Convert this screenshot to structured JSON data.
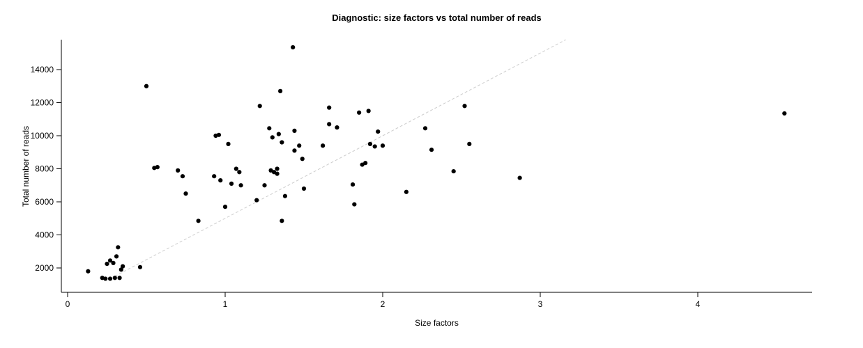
{
  "chart_data": {
    "type": "scatter",
    "title": "Diagnostic: size factors vs total number of reads",
    "xlabel": "Size factors",
    "ylabel": "Total number of reads",
    "xlim": [
      0,
      4.7
    ],
    "ylim": [
      500,
      15800
    ],
    "x_ticks": [
      0,
      1,
      2,
      3,
      4
    ],
    "y_ticks": [
      2000,
      4000,
      6000,
      8000,
      10000,
      12000,
      14000
    ],
    "grid": false,
    "legend": "none",
    "point_color": "#000000",
    "reference_line": {
      "style": "dashed",
      "color": "#cccccc",
      "slope": 5000,
      "intercept": 0
    },
    "points": [
      [
        0.13,
        1800
      ],
      [
        0.22,
        1400
      ],
      [
        0.24,
        1350
      ],
      [
        0.25,
        2250
      ],
      [
        0.27,
        2450
      ],
      [
        0.27,
        1350
      ],
      [
        0.29,
        2300
      ],
      [
        0.3,
        1400
      ],
      [
        0.31,
        2700
      ],
      [
        0.32,
        3250
      ],
      [
        0.33,
        1400
      ],
      [
        0.34,
        1900
      ],
      [
        0.35,
        2100
      ],
      [
        0.46,
        2050
      ],
      [
        0.5,
        13000
      ],
      [
        0.55,
        8050
      ],
      [
        0.57,
        8100
      ],
      [
        0.7,
        7900
      ],
      [
        0.73,
        7550
      ],
      [
        0.75,
        6500
      ],
      [
        0.83,
        4850
      ],
      [
        0.93,
        7550
      ],
      [
        0.94,
        10000
      ],
      [
        0.96,
        10050
      ],
      [
        0.97,
        7300
      ],
      [
        1.0,
        5700
      ],
      [
        1.02,
        9500
      ],
      [
        1.04,
        7100
      ],
      [
        1.07,
        8000
      ],
      [
        1.09,
        7800
      ],
      [
        1.1,
        7000
      ],
      [
        1.2,
        6100
      ],
      [
        1.22,
        11800
      ],
      [
        1.25,
        7000
      ],
      [
        1.28,
        10450
      ],
      [
        1.29,
        7900
      ],
      [
        1.3,
        9900
      ],
      [
        1.31,
        7800
      ],
      [
        1.33,
        8000
      ],
      [
        1.33,
        7700
      ],
      [
        1.34,
        10100
      ],
      [
        1.35,
        12700
      ],
      [
        1.36,
        9600
      ],
      [
        1.36,
        4850
      ],
      [
        1.38,
        6350
      ],
      [
        1.43,
        15350
      ],
      [
        1.44,
        10300
      ],
      [
        1.44,
        9100
      ],
      [
        1.47,
        9400
      ],
      [
        1.49,
        8600
      ],
      [
        1.5,
        6800
      ],
      [
        1.62,
        9400
      ],
      [
        1.66,
        11700
      ],
      [
        1.66,
        10700
      ],
      [
        1.71,
        10500
      ],
      [
        1.81,
        7050
      ],
      [
        1.82,
        5850
      ],
      [
        1.85,
        11400
      ],
      [
        1.87,
        8250
      ],
      [
        1.89,
        8350
      ],
      [
        1.91,
        11500
      ],
      [
        1.92,
        9500
      ],
      [
        1.95,
        9350
      ],
      [
        1.97,
        10250
      ],
      [
        2.0,
        9400
      ],
      [
        2.15,
        6600
      ],
      [
        2.27,
        10450
      ],
      [
        2.31,
        9150
      ],
      [
        2.45,
        7850
      ],
      [
        2.52,
        11800
      ],
      [
        2.55,
        9500
      ],
      [
        2.87,
        7450
      ],
      [
        4.55,
        11350
      ]
    ]
  }
}
